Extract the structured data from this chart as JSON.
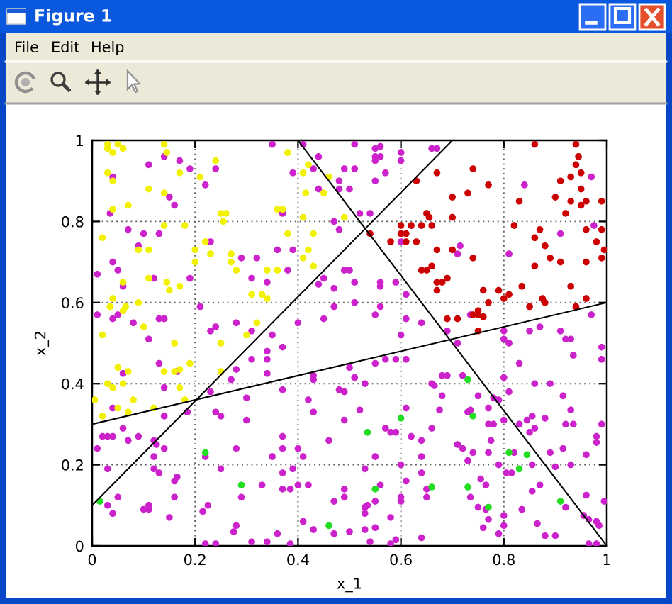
{
  "chart_data": {
    "type": "scatter",
    "title": "Figure 1",
    "xlabel": "x_1",
    "ylabel": "x_2",
    "annotations": [
      "File",
      "Edit",
      "Help"
    ],
    "xlim": [
      0,
      1
    ],
    "ylim": [
      0,
      1
    ],
    "xticks": [
      0,
      0.2,
      0.4,
      0.6,
      0.8,
      1
    ],
    "yticks": [
      0,
      0.2,
      0.4,
      0.6,
      0.8,
      1
    ],
    "grid": true,
    "series": [
      {
        "color": "#cc22cc",
        "marker": "circle",
        "x": [
          0.04,
          0.11,
          0.14,
          0.17,
          0.19,
          0.24,
          0.22,
          0.15,
          0.16,
          0.035,
          0.07,
          0.1,
          0.13,
          0.09,
          0.23,
          0.29,
          0.32,
          0.31,
          0.01,
          0.04,
          0.05,
          0.06,
          0.12,
          0.19,
          0.21,
          0.01,
          0.04,
          0.05,
          0.08,
          0.13,
          0.14,
          0.11,
          0.24,
          0.23,
          0.28,
          0.31,
          0.35,
          0.41,
          0.51,
          0.55,
          0.56,
          0.6,
          0.66,
          0.67,
          0.44,
          0.55,
          0.56,
          0.6,
          0.55,
          0.39,
          0.43,
          0.49,
          0.51,
          0.57,
          0.55,
          0.48,
          0.44,
          0.48,
          0.5,
          0.37,
          0.52,
          0.54,
          0.47,
          0.48,
          0.36,
          0.39,
          0.38,
          0.34,
          0.45,
          0.44,
          0.49,
          0.5,
          0.51,
          0.47,
          0.56,
          0.56,
          0.59,
          0.51,
          0.61,
          0.47,
          0.56,
          0.55,
          0.4,
          0.45,
          0.61,
          0.64,
          0.35,
          0.37,
          0.6,
          0.6,
          0.84,
          0.97,
          0.91,
          0.975,
          0.715,
          0.71,
          0.81,
          0.735,
          0.69,
          0.8,
          0.8,
          0.81,
          0.85,
          0.87,
          0.91,
          0.92,
          0.93,
          0.97,
          0.71,
          0.99,
          0.06,
          0.13,
          0.165,
          0.14,
          0.31,
          0.28,
          0.27,
          0.23,
          0.3,
          0.24,
          0.25,
          0.185,
          0.3,
          0.04,
          0.14,
          0.02,
          0.03,
          0.04,
          0.06,
          0.07,
          0.09,
          0.12,
          0.125,
          0.01,
          0.14,
          0.12,
          0.22,
          0.28,
          0.03,
          0.12,
          0.13,
          0.165,
          0.16,
          0.25,
          0.33,
          0.05,
          0.03,
          0.04,
          0.11,
          0.1,
          0.11,
          0.16,
          0.15,
          0.215,
          0.225,
          0.29,
          0.275,
          0.28,
          0.31,
          0.22,
          0.24,
          0.34,
          0.34,
          0.34,
          0.43,
          0.43,
          0.5,
          0.51,
          0.55,
          0.57,
          0.59,
          0.61,
          0.37,
          0.48,
          0.49,
          0.53,
          0.66,
          0.665,
          0.42,
          0.43,
          0.52,
          0.61,
          0.49,
          0.57,
          0.58,
          0.59,
          0.62,
          0.64,
          0.66,
          0.46,
          0.37,
          0.37,
          0.4,
          0.35,
          0.41,
          0.55,
          0.64,
          0.39,
          0.37,
          0.53,
          0.6,
          0.37,
          0.385,
          0.4,
          0.42,
          0.49,
          0.49,
          0.47,
          0.56,
          0.55,
          0.535,
          0.53,
          0.53,
          0.6,
          0.6,
          0.61,
          0.64,
          0.65,
          0.65,
          0.58,
          0.41,
          0.43,
          0.47,
          0.5,
          0.53,
          0.55,
          0.54,
          0.58,
          0.59,
          0.36,
          0.34,
          0.385,
          0.64,
          0.99,
          0.83,
          0.935,
          0.68,
          0.69,
          0.72,
          0.8,
          0.86,
          0.89,
          0.68,
          0.675,
          0.75,
          0.81,
          0.915,
          0.93,
          0.78,
          0.79,
          0.77,
          0.73,
          0.735,
          0.8,
          0.83,
          0.845,
          0.855,
          0.86,
          0.85,
          0.88,
          0.77,
          0.78,
          0.71,
          0.72,
          0.74,
          0.775,
          0.77,
          0.79,
          0.82,
          0.805,
          0.815,
          0.73,
          0.855,
          0.9,
          0.89,
          0.915,
          0.93,
          0.92,
          0.935,
          0.96,
          0.98,
          0.98,
          0.99,
          0.995,
          0.855,
          0.87,
          0.755,
          0.765,
          0.735,
          0.75,
          0.765,
          0.77,
          0.76,
          0.8,
          0.8,
          0.79,
          0.835,
          0.865,
          0.88,
          0.9,
          0.92,
          0.955,
          0.965,
          0.98,
          0.985,
          0.965,
          0.98,
          0.96
        ],
        "values": [
          0.91,
          0.94,
          0.96,
          0.95,
          0.93,
          0.93,
          0.89,
          0.86,
          0.84,
          0.82,
          0.78,
          0.77,
          0.77,
          0.74,
          0.75,
          0.71,
          0.71,
          0.66,
          0.67,
          0.7,
          0.68,
          0.64,
          0.66,
          0.66,
          0.59,
          0.57,
          0.56,
          0.57,
          0.55,
          0.56,
          0.56,
          0.51,
          0.54,
          0.53,
          0.55,
          0.53,
          0.99,
          0.99,
          0.99,
          0.98,
          0.985,
          0.97,
          0.98,
          0.98,
          0.96,
          0.96,
          0.96,
          0.95,
          0.95,
          0.92,
          0.93,
          0.93,
          0.93,
          0.92,
          0.9,
          0.9,
          0.88,
          0.88,
          0.88,
          0.82,
          0.82,
          0.82,
          0.8,
          0.78,
          0.73,
          0.73,
          0.68,
          0.65,
          0.66,
          0.645,
          0.68,
          0.68,
          0.65,
          0.635,
          0.64,
          0.65,
          0.65,
          0.6,
          0.62,
          0.59,
          0.59,
          0.57,
          0.55,
          0.56,
          0.56,
          0.55,
          0.52,
          0.49,
          0.52,
          0.75,
          0.89,
          0.91,
          0.77,
          0.79,
          0.74,
          0.72,
          0.72,
          0.57,
          0.53,
          0.53,
          0.51,
          0.5,
          0.53,
          0.54,
          0.53,
          0.51,
          0.51,
          0.57,
          0.5,
          0.49,
          0.425,
          0.45,
          0.43,
          0.39,
          0.46,
          0.435,
          0.41,
          0.38,
          0.365,
          0.33,
          0.32,
          0.33,
          0.31,
          0.34,
          0.32,
          0.27,
          0.27,
          0.27,
          0.29,
          0.26,
          0.27,
          0.26,
          0.25,
          0.24,
          0.24,
          0.22,
          0.22,
          0.24,
          0.19,
          0.19,
          0.18,
          0.17,
          0.16,
          0.19,
          0.15,
          0.12,
          0.1,
          0.08,
          0.1,
          0.09,
          0.09,
          0.12,
          0.07,
          0.085,
          0.1,
          0.12,
          0.035,
          0.05,
          0.01,
          0.005,
          0.005,
          0.48,
          0.46,
          0.425,
          0.42,
          0.41,
          0.44,
          0.415,
          0.45,
          0.46,
          0.46,
          0.46,
          0.385,
          0.385,
          0.38,
          0.4,
          0.4,
          0.395,
          0.36,
          0.33,
          0.335,
          0.34,
          0.31,
          0.29,
          0.28,
          0.28,
          0.27,
          0.26,
          0.29,
          0.26,
          0.27,
          0.24,
          0.24,
          0.22,
          0.22,
          0.22,
          0.22,
          0.19,
          0.18,
          0.19,
          0.2,
          0.14,
          0.14,
          0.15,
          0.15,
          0.14,
          0.12,
          0.11,
          0.15,
          0.11,
          0.1,
          0.095,
          0.08,
          0.12,
          0.11,
          0.16,
          0.18,
          0.14,
          0.12,
          0.07,
          0.06,
          0.04,
          0.03,
          0.035,
          0.04,
          0.045,
          0.01,
          0.005,
          0.015,
          0.03,
          0.01,
          0.005,
          0.02,
          0.46,
          0.45,
          0.47,
          0.42,
          0.42,
          0.42,
          0.415,
          0.4,
          0.4,
          0.37,
          0.335,
          0.37,
          0.38,
          0.37,
          0.335,
          0.365,
          0.36,
          0.34,
          0.33,
          0.335,
          0.31,
          0.3,
          0.31,
          0.32,
          0.29,
          0.28,
          0.315,
          0.3,
          0.3,
          0.25,
          0.24,
          0.23,
          0.26,
          0.23,
          0.2,
          0.23,
          0.18,
          0.18,
          0.21,
          0.2,
          0.195,
          0.23,
          0.24,
          0.2,
          0.3,
          0.3,
          0.225,
          0.27,
          0.255,
          0.3,
          0.11,
          0.135,
          0.15,
          0.165,
          0.15,
          0.12,
          0.095,
          0.09,
          0.065,
          0.045,
          0.075,
          0.05,
          0.03,
          0.09,
          0.055,
          0.025,
          0.025,
          0.095,
          0.075,
          0.065,
          0.06,
          0.05,
          0.005,
          0.005,
          0.125
        ]
      },
      {
        "color": "#f2f200",
        "marker": "circle",
        "x": [
          0.03,
          0.03,
          0.04,
          0.05,
          0.06,
          0.14,
          0.145,
          0.24,
          0.21,
          0.03,
          0.04,
          0.07,
          0.11,
          0.17,
          0.14,
          0.04,
          0.25,
          0.26,
          0.255,
          0.14,
          0.18,
          0.02,
          0.22,
          0.23,
          0.2,
          0.27,
          0.27,
          0.28,
          0.09,
          0.11,
          0.09,
          0.11,
          0.145,
          0.15,
          0.17,
          0.06,
          0.04,
          0.035,
          0.06,
          0.065,
          0.02,
          0.1,
          0.16,
          0.2,
          0.31,
          0.32,
          0.3,
          0.25,
          0.38,
          0.42,
          0.41,
          0.46,
          0.415,
          0.45,
          0.36,
          0.37,
          0.41,
          0.49,
          0.38,
          0.43,
          0.42,
          0.41,
          0.43,
          0.34,
          0.36,
          0.33,
          0.34,
          0.05,
          0.07,
          0.03,
          0.04,
          0.06,
          0.14,
          0.16,
          0.17,
          0.19,
          0.17,
          0.18,
          0.25,
          0.005,
          0.05,
          0.08,
          0.07,
          0.02,
          0.12
        ],
        "values": [
          0.98,
          0.99,
          0.97,
          0.99,
          0.98,
          0.99,
          0.97,
          0.95,
          0.91,
          0.92,
          0.9,
          0.84,
          0.88,
          0.92,
          0.87,
          0.83,
          0.82,
          0.82,
          0.8,
          0.79,
          0.79,
          0.76,
          0.75,
          0.72,
          0.73,
          0.72,
          0.7,
          0.68,
          0.73,
          0.73,
          0.6,
          0.66,
          0.65,
          0.63,
          0.64,
          0.65,
          0.61,
          0.59,
          0.58,
          0.59,
          0.52,
          0.54,
          0.5,
          0.7,
          0.62,
          0.55,
          0.52,
          0.5,
          0.97,
          0.94,
          0.92,
          0.91,
          0.87,
          0.87,
          0.83,
          0.83,
          0.81,
          0.81,
          0.77,
          0.77,
          0.73,
          0.71,
          0.69,
          0.68,
          0.68,
          0.62,
          0.61,
          0.44,
          0.43,
          0.4,
          0.39,
          0.4,
          0.43,
          0.43,
          0.435,
          0.45,
          0.39,
          0.36,
          0.43,
          0.36,
          0.34,
          0.36,
          0.33,
          0.32,
          0.34
        ]
      },
      {
        "color": "#cc0000",
        "marker": "circle",
        "x": [
          0.63,
          0.67,
          0.65,
          0.655,
          0.6,
          0.62,
          0.64,
          0.66,
          0.54,
          0.6,
          0.61,
          0.58,
          0.61,
          0.63,
          0.67,
          0.64,
          0.65,
          0.66,
          0.67,
          0.67,
          0.74,
          0.77,
          0.73,
          0.7,
          0.7,
          0.86,
          0.94,
          0.945,
          0.94,
          0.95,
          0.93,
          0.91,
          0.95,
          0.83,
          0.9,
          0.93,
          0.96,
          0.95,
          0.99,
          0.92,
          0.82,
          0.87,
          0.86,
          0.96,
          0.99,
          0.98,
          0.88,
          0.89,
          0.91,
          0.86,
          0.96,
          0.99,
          0.995,
          0.7,
          0.74,
          0.69,
          0.68,
          0.76,
          0.79,
          0.835,
          0.81,
          0.8,
          0.77,
          0.875,
          0.88,
          0.93,
          0.96,
          0.85,
          0.94,
          0.75,
          0.75,
          0.76,
          0.74,
          0.69,
          0.71,
          0.75
        ],
        "values": [
          0.9,
          0.92,
          0.82,
          0.81,
          0.79,
          0.79,
          0.79,
          0.79,
          0.77,
          0.77,
          0.77,
          0.75,
          0.75,
          0.75,
          0.73,
          0.68,
          0.68,
          0.69,
          0.65,
          0.63,
          0.93,
          0.89,
          0.87,
          0.86,
          0.81,
          0.99,
          0.99,
          0.96,
          0.94,
          0.92,
          0.91,
          0.9,
          0.88,
          0.85,
          0.86,
          0.85,
          0.85,
          0.84,
          0.85,
          0.82,
          0.79,
          0.78,
          0.76,
          0.78,
          0.78,
          0.75,
          0.74,
          0.71,
          0.7,
          0.69,
          0.7,
          0.71,
          0.73,
          0.73,
          0.71,
          0.66,
          0.65,
          0.63,
          0.63,
          0.64,
          0.62,
          0.61,
          0.6,
          0.61,
          0.6,
          0.64,
          0.61,
          0.59,
          0.59,
          0.58,
          0.57,
          0.565,
          0.57,
          0.56,
          0.56,
          0.53
        ]
      },
      {
        "color": "#22dd22",
        "marker": "circle",
        "x": [
          0.015,
          0.22,
          0.29,
          0.535,
          0.6,
          0.55,
          0.46,
          0.66,
          0.73,
          0.74,
          0.81,
          0.845,
          0.83,
          0.73,
          0.77,
          0.91
        ],
        "values": [
          0.11,
          0.23,
          0.15,
          0.28,
          0.315,
          0.14,
          0.05,
          0.145,
          0.41,
          0.32,
          0.23,
          0.225,
          0.19,
          0.145,
          0.095,
          0.11
        ]
      },
      {
        "type": "line",
        "color": "#000000",
        "x": [
          0,
          0.7
        ],
        "values": [
          0.1,
          1
        ]
      },
      {
        "type": "line",
        "color": "#000000",
        "x": [
          0.4,
          1
        ],
        "values": [
          1,
          0
        ]
      },
      {
        "type": "line",
        "color": "#000000",
        "x": [
          0,
          1
        ],
        "values": [
          0.3,
          0.6
        ]
      }
    ]
  }
}
